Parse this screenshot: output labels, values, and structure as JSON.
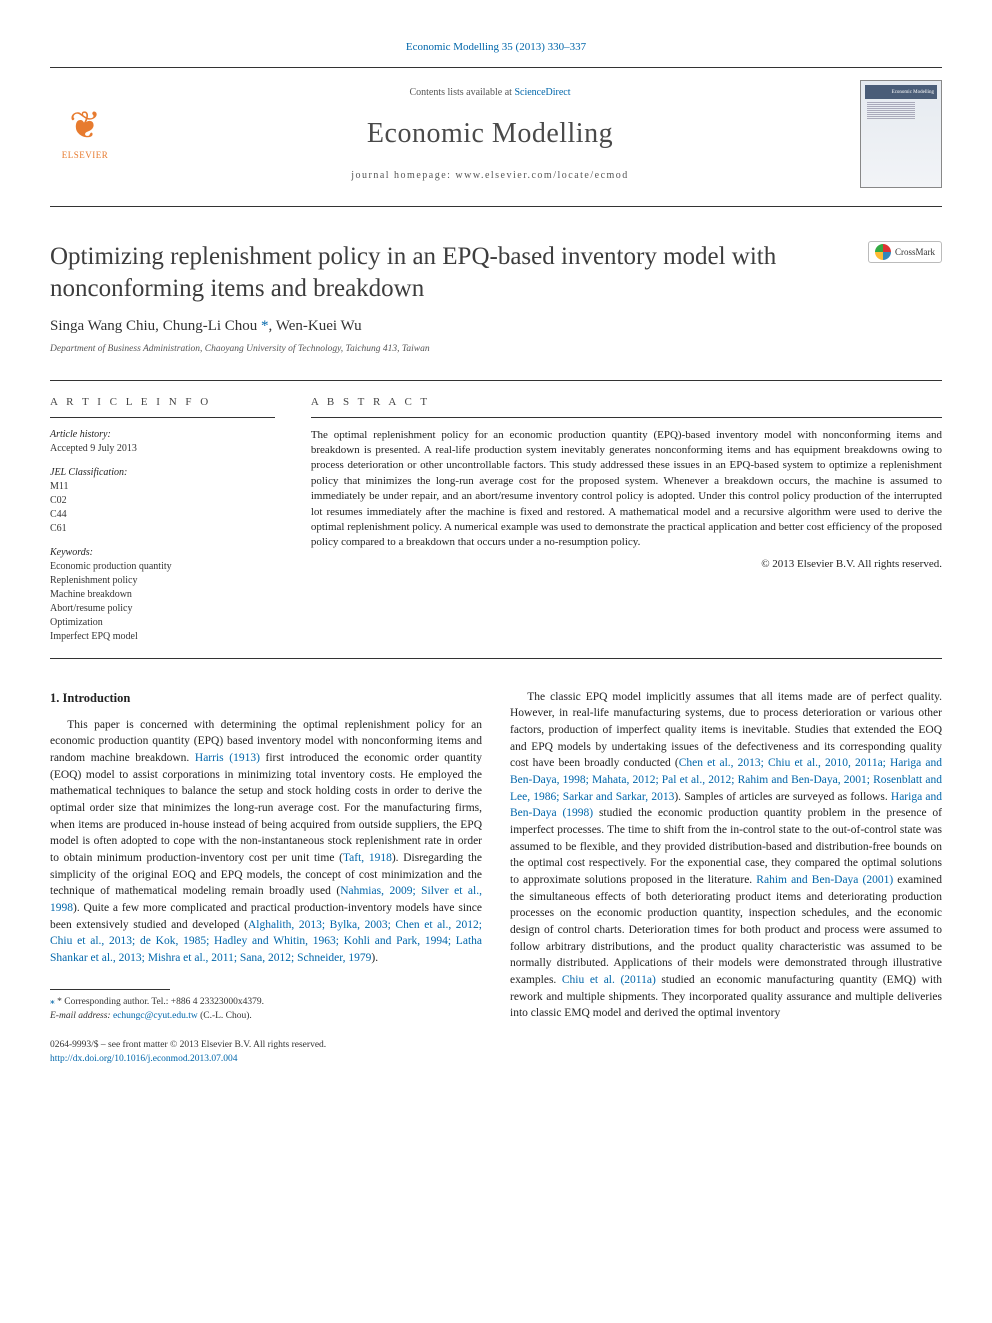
{
  "journal_ref": {
    "text_before": "Economic Modelling 35 (2013) 330–337",
    "link_text": "Economic Modelling 35 (2013) 330–337"
  },
  "header": {
    "contents_line_prefix": "Contents lists available at ",
    "contents_link": "ScienceDirect",
    "journal_name": "Economic Modelling",
    "homepage_prefix": "journal homepage: ",
    "homepage": "www.elsevier.com/locate/ecmod",
    "publisher": "ELSEVIER",
    "cover_label": "Economic Modelling"
  },
  "article": {
    "title": "Optimizing replenishment policy in an EPQ-based inventory model with nonconforming items and breakdown",
    "crossmark": "CrossMark",
    "authors_html_parts": {
      "a1": "Singa Wang Chiu, ",
      "a2": "Chung-Li Chou",
      "star": " *",
      "a3": ", Wen-Kuei Wu"
    },
    "affiliation": "Department of Business Administration, Chaoyang University of Technology, Taichung 413, Taiwan"
  },
  "info": {
    "title": "A R T I C L E   I N F O",
    "history_label": "Article history:",
    "history_value": "Accepted 9 July 2013",
    "jel_label": "JEL Classification:",
    "jel": [
      "M11",
      "C02",
      "C44",
      "C61"
    ],
    "keywords_label": "Keywords:",
    "keywords": [
      "Economic production quantity",
      "Replenishment policy",
      "Machine breakdown",
      "Abort/resume policy",
      "Optimization",
      "Imperfect EPQ model"
    ]
  },
  "abstract": {
    "title": "A B S T R A C T",
    "text": "The optimal replenishment policy for an economic production quantity (EPQ)-based inventory model with nonconforming items and breakdown is presented. A real-life production system inevitably generates nonconforming items and has equipment breakdowns owing to process deterioration or other uncontrollable factors. This study addressed these issues in an EPQ-based system to optimize a replenishment policy that minimizes the long-run average cost for the proposed system. Whenever a breakdown occurs, the machine is assumed to immediately be under repair, and an abort/resume inventory control policy is adopted. Under this control policy production of the interrupted lot resumes immediately after the machine is fixed and restored. A mathematical model and a recursive algorithm were used to derive the optimal replenishment policy. A numerical example was used to demonstrate the practical application and better cost efficiency of the proposed policy compared to a breakdown that occurs under a no-resumption policy.",
    "copyright": "© 2013 Elsevier B.V. All rights reserved."
  },
  "body": {
    "heading": "1. Introduction",
    "col1_p1_before": "This paper is concerned with determining the optimal replenishment policy for an economic production quantity (EPQ) based inventory model with nonconforming items and random machine breakdown. ",
    "col1_link1": "Harris (1913)",
    "col1_p1_mid1": " first introduced the economic order quantity (EOQ) model to assist corporations in minimizing total inventory costs. He employed the mathematical techniques to balance the setup and stock holding costs in order to derive the optimal order size that minimizes the long-run average cost. For the manufacturing firms, when items are produced in-house instead of being acquired from outside suppliers, the EPQ model is often adopted to cope with the non-instantaneous stock replenishment rate in order to obtain minimum production-inventory cost per unit time (",
    "col1_link2": "Taft, 1918",
    "col1_p1_mid2": "). Disregarding the simplicity of the original EOQ and EPQ models, the concept of cost minimization and the technique of mathematical modeling remain broadly used (",
    "col1_link3": "Nahmias, 2009; Silver et al., 1998",
    "col1_p1_mid3": "). Quite a few more complicated and practical production-inventory models have since been extensively studied and developed (",
    "col1_link4": "Alghalith, 2013; Bylka, 2003; Chen et al., 2012; Chiu et al., 2013; de Kok, 1985; Hadley and Whitin, 1963; Kohli and Park, 1994; Latha Shankar et al., 2013; Mishra et al., 2011; Sana, 2012; Schneider, 1979",
    "col1_p1_end": ").",
    "col2_p1_before": "The classic EPQ model implicitly assumes that all items made are of perfect quality. However, in real-life manufacturing systems, due to process deterioration or various other factors, production of imperfect quality items is inevitable. Studies that extended the EOQ and EPQ models by undertaking issues of the defectiveness and its corresponding quality cost have been broadly conducted (",
    "col2_link1": "Chen et al., 2013; Chiu et al., 2010, 2011a; Hariga and Ben-Daya, 1998; Mahata, 2012; Pal et al., 2012; Rahim and Ben-Daya, 2001; Rosenblatt and Lee, 1986; Sarkar and Sarkar, 2013",
    "col2_p1_mid1": "). Samples of articles are surveyed as follows. ",
    "col2_link2": "Hariga and Ben-Daya (1998)",
    "col2_p1_mid2": " studied the economic production quantity problem in the presence of imperfect processes. The time to shift from the in-control state to the out-of-control state was assumed to be flexible, and they provided distribution-based and distribution-free bounds on the optimal cost respectively. For the exponential case, they compared the optimal solutions to approximate solutions proposed in the literature. ",
    "col2_link3": "Rahim and Ben-Daya (2001)",
    "col2_p1_mid3": " examined the simultaneous effects of both deteriorating product items and deteriorating production processes on the economic production quantity, inspection schedules, and the economic design of control charts. Deterioration times for both product and process were assumed to follow arbitrary distributions, and the product quality characteristic was assumed to be normally distributed. Applications of their models were demonstrated through illustrative examples. ",
    "col2_link4": "Chiu et al. (2011a)",
    "col2_p1_end": " studied an economic manufacturing quantity (EMQ) with rework and multiple shipments. They incorporated quality assurance and multiple deliveries into classic EMQ model and derived the optimal inventory"
  },
  "footnotes": {
    "corr_label": "* Corresponding author. Tel.: +886 4 23323000x4379.",
    "email_label": "E-mail address: ",
    "email": "echungc@cyut.edu.tw",
    "email_suffix": " (C.-L. Chou)."
  },
  "bottom": {
    "issn_line": "0264-9993/$ – see front matter © 2013 Elsevier B.V. All rights reserved.",
    "doi": "http://dx.doi.org/10.1016/j.econmod.2013.07.004"
  },
  "colors": {
    "link": "#0066aa",
    "publisher": "#e77b2f",
    "text": "#222222",
    "rule": "#333333"
  }
}
